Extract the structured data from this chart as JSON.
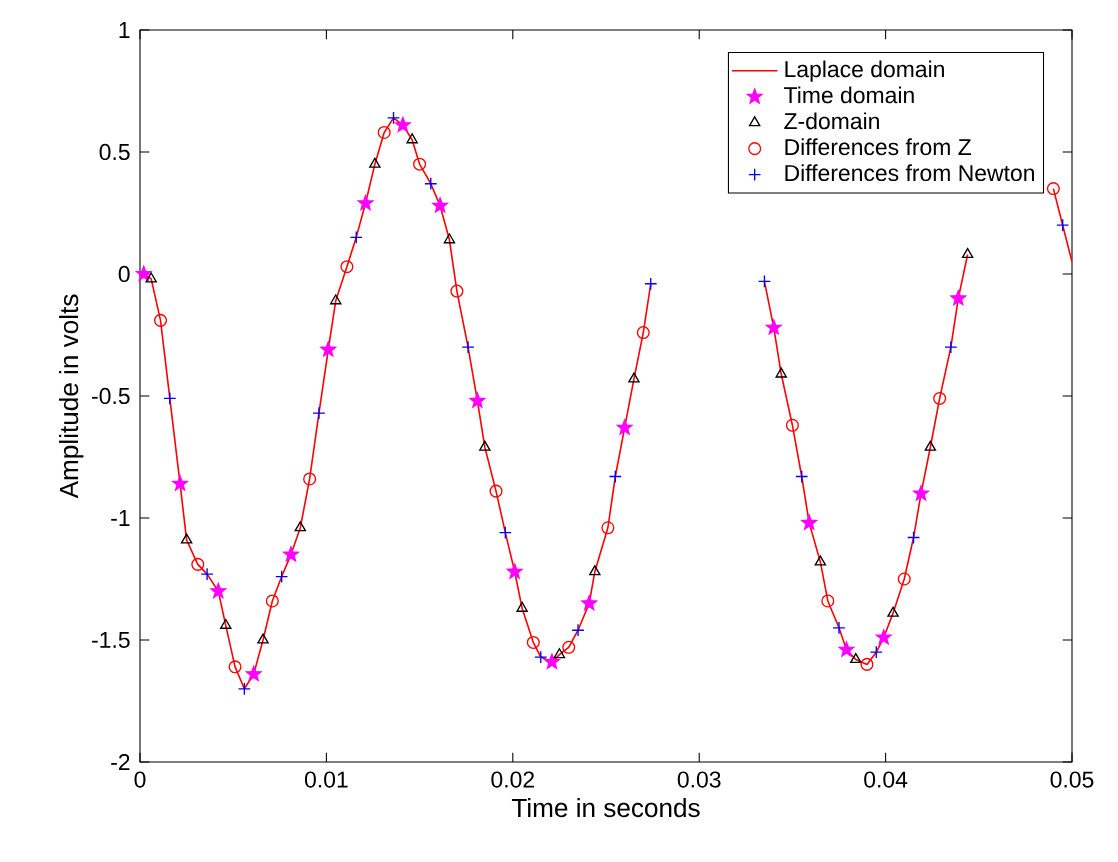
{
  "chart_data": {
    "type": "line",
    "xlabel": "Time in seconds",
    "ylabel": "Amplitude in volts",
    "xlim": [
      0,
      0.05
    ],
    "xticks": [
      0,
      0.01,
      0.02,
      0.03,
      0.04,
      0.05
    ],
    "ylim": [
      -2,
      1
    ],
    "yticks": [
      -2,
      -1.5,
      -1,
      -0.5,
      0,
      0.5,
      1
    ],
    "legend": "top right",
    "series": [
      {
        "name": "Laplace domain",
        "type": "line",
        "marker": "none",
        "line_style": "solid",
        "color": "#ff0000",
        "x": [
          0.0002,
          0.0006,
          0.0011,
          0.0016,
          0.00215,
          0.0025,
          0.0031,
          0.0036,
          0.0042,
          0.0046,
          0.0051,
          0.0056,
          0.0061,
          0.0066,
          0.0071,
          0.0076,
          0.0081,
          0.0086,
          0.0091,
          0.0096,
          0.0101,
          0.0105,
          0.0111,
          0.0116,
          0.0121,
          0.0126,
          0.0131,
          0.0136,
          0.0141,
          0.0146,
          0.015,
          0.0156,
          0.0161,
          0.0166,
          0.017,
          0.0176,
          0.0181,
          0.0185,
          0.0191,
          0.0196,
          0.0201,
          0.0205,
          0.0211,
          0.0215,
          0.0221,
          0.0225,
          0.023,
          0.0235,
          0.0241,
          0.0244,
          0.0251,
          0.0255,
          0.026,
          0.0265,
          0.027,
          0.0274,
          0.03,
          0.0335,
          0.034,
          0.0344,
          0.035,
          0.0355,
          0.0359,
          0.0365,
          0.0369,
          0.0375,
          0.0379,
          0.0384,
          0.039,
          0.0395,
          0.0399,
          0.0404,
          0.041,
          0.0415,
          0.0419,
          0.0424,
          0.0429,
          0.0435,
          0.0439,
          0.0444,
          0.0465,
          0.049,
          0.0495,
          0.05
        ],
        "values": [
          0,
          -0.02,
          -0.19,
          -0.51,
          -0.86,
          -1.09,
          -1.19,
          -1.23,
          -1.3,
          -1.44,
          -1.61,
          -1.7,
          -1.64,
          -1.5,
          -1.34,
          -1.24,
          -1.15,
          -1.04,
          -0.84,
          -0.57,
          -0.31,
          -0.11,
          0.03,
          0.15,
          0.29,
          0.45,
          0.58,
          0.64,
          0.61,
          0.55,
          0.45,
          0.37,
          0.28,
          0.14,
          -0.07,
          -0.3,
          -0.52,
          -0.71,
          -0.89,
          -1.06,
          -1.22,
          -1.37,
          -1.51,
          -1.57,
          -1.59,
          -1.56,
          -1.53,
          -1.46,
          -1.35,
          -1.22,
          -1.04,
          -0.83,
          -0.63,
          -0.43,
          -0.24,
          -0.04,
          null,
          -0.03,
          -0.22,
          -0.41,
          -0.62,
          -0.83,
          -1.02,
          -1.18,
          -1.34,
          -1.45,
          -1.54,
          -1.58,
          -1.6,
          -1.55,
          -1.49,
          -1.39,
          -1.25,
          -1.08,
          -0.9,
          -0.71,
          -0.51,
          -0.3,
          -0.1,
          0.08,
          null,
          0.35,
          0.2,
          0.05
        ]
      },
      {
        "name": "Time domain",
        "type": "scatter",
        "marker": "star",
        "color": "#ff00ff",
        "x": [
          0.0002,
          0.00215,
          0.0042,
          0.0061,
          0.0081,
          0.0101,
          0.0121,
          0.0141,
          0.0161,
          0.0181,
          0.0201,
          0.0221,
          0.0241,
          0.026,
          0.034,
          0.0359,
          0.0379,
          0.0399,
          0.0419,
          0.0439
        ],
        "values": [
          0,
          -0.86,
          -1.3,
          -1.64,
          -1.15,
          -0.31,
          0.29,
          0.61,
          0.28,
          -0.52,
          -1.22,
          -1.59,
          -1.35,
          -0.63,
          -0.22,
          -1.02,
          -1.54,
          -1.49,
          -0.9,
          -0.1
        ]
      },
      {
        "name": "Z-domain",
        "type": "scatter",
        "marker": "triangle",
        "color": "#000000",
        "x": [
          0.0006,
          0.0025,
          0.0046,
          0.0066,
          0.0086,
          0.0105,
          0.0126,
          0.0146,
          0.0166,
          0.0185,
          0.0205,
          0.0225,
          0.0244,
          0.0265,
          0.0344,
          0.0365,
          0.0384,
          0.0404,
          0.0424,
          0.0444
        ],
        "values": [
          -0.02,
          -1.09,
          -1.44,
          -1.5,
          -1.04,
          -0.11,
          0.45,
          0.55,
          0.14,
          -0.71,
          -1.37,
          -1.56,
          -1.22,
          -0.43,
          -0.41,
          -1.18,
          -1.58,
          -1.39,
          -0.71,
          0.08
        ]
      },
      {
        "name": "Differences from Z",
        "type": "scatter",
        "marker": "circle",
        "color": "#ff0000",
        "x": [
          0.0011,
          0.0031,
          0.0051,
          0.0071,
          0.0091,
          0.0111,
          0.0131,
          0.015,
          0.017,
          0.0191,
          0.0211,
          0.023,
          0.0251,
          0.027,
          0.035,
          0.0369,
          0.039,
          0.041,
          0.0429,
          0.049
        ],
        "values": [
          -0.19,
          -1.19,
          -1.61,
          -1.34,
          -0.84,
          0.03,
          0.58,
          0.45,
          -0.07,
          -0.89,
          -1.51,
          -1.53,
          -1.04,
          -0.24,
          -0.62,
          -1.34,
          -1.6,
          -1.25,
          -0.51,
          0.35
        ]
      },
      {
        "name": "Differences from Newton",
        "type": "scatter",
        "marker": "cross",
        "color": "#0000ff",
        "x": [
          0.0016,
          0.0036,
          0.0056,
          0.0076,
          0.0096,
          0.0116,
          0.0136,
          0.0156,
          0.0176,
          0.0196,
          0.0215,
          0.0235,
          0.0255,
          0.0274,
          0.0335,
          0.0355,
          0.0375,
          0.0395,
          0.0415,
          0.0435,
          0.0495
        ],
        "values": [
          -0.51,
          -1.23,
          -1.7,
          -1.24,
          -0.57,
          0.15,
          0.64,
          0.37,
          -0.3,
          -1.06,
          -1.57,
          -1.46,
          -0.83,
          -0.04,
          -0.03,
          -0.83,
          -1.45,
          -1.55,
          -1.08,
          -0.3,
          0.2
        ]
      }
    ]
  }
}
